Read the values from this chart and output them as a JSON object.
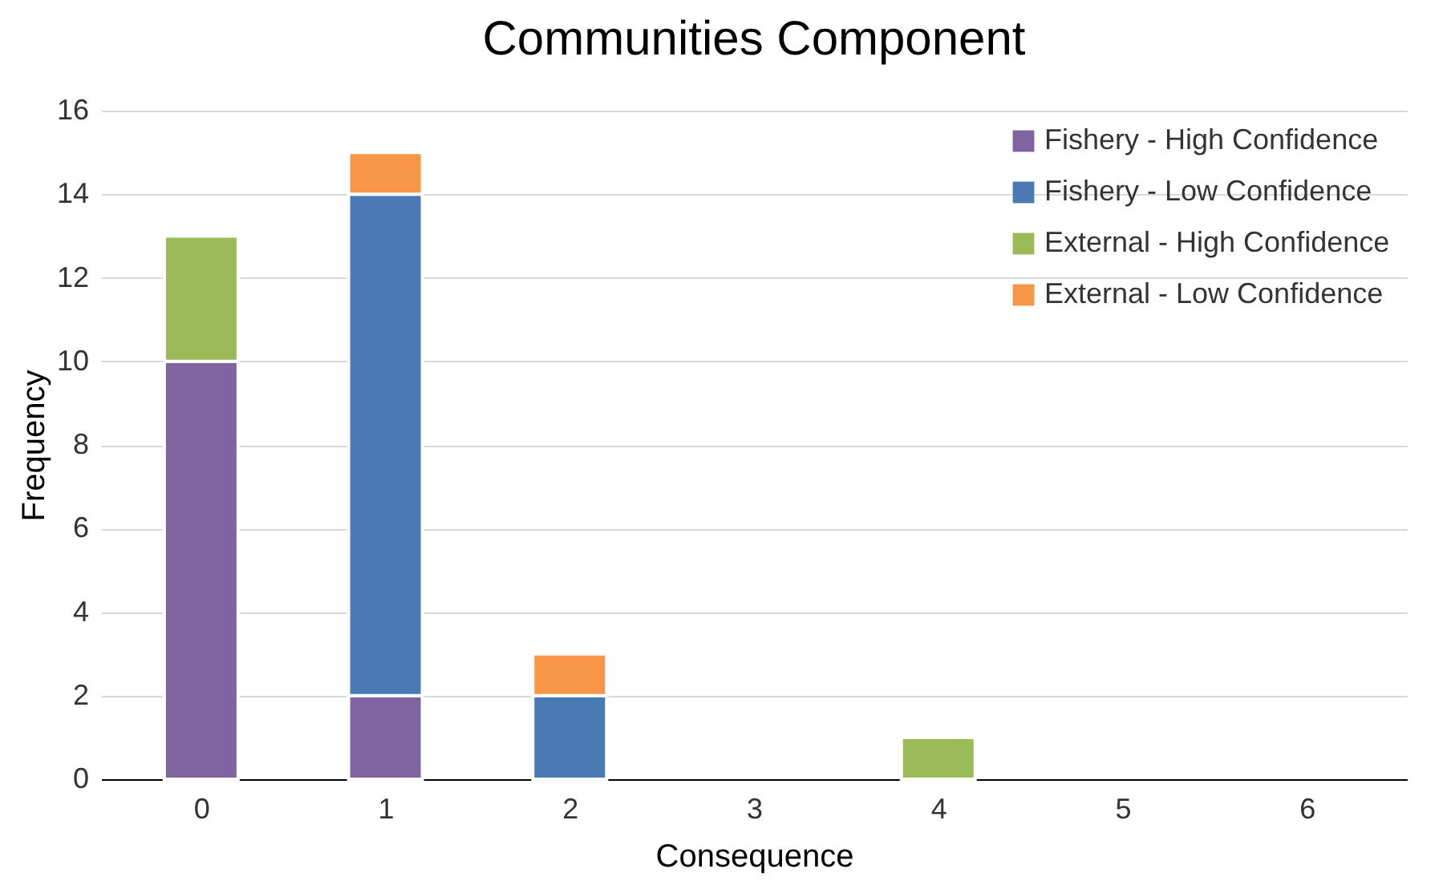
{
  "chart_data": {
    "type": "bar",
    "title": "Communities Component",
    "xlabel": "Consequence",
    "ylabel": "Frequency",
    "categories": [
      "0",
      "1",
      "2",
      "3",
      "4",
      "5",
      "6"
    ],
    "stacked": true,
    "series": [
      {
        "name": "Fishery - High Confidence",
        "color": "#8064a2",
        "values": [
          10,
          2,
          null,
          null,
          null,
          null,
          null
        ]
      },
      {
        "name": "Fishery - Low Confidence",
        "color": "#4a7ab4",
        "values": [
          null,
          12,
          2,
          null,
          null,
          null,
          null
        ]
      },
      {
        "name": "External - High Confidence",
        "color": "#9bbb59",
        "values": [
          3,
          null,
          null,
          null,
          1,
          null,
          null
        ]
      },
      {
        "name": "External - Low Confidence",
        "color": "#f79646",
        "values": [
          null,
          1,
          1,
          null,
          null,
          null,
          null
        ]
      }
    ],
    "ylim": [
      0,
      16
    ],
    "yticks": [
      0,
      2,
      4,
      6,
      8,
      10,
      12,
      14,
      16
    ],
    "grid": "y",
    "legend": "top right"
  }
}
